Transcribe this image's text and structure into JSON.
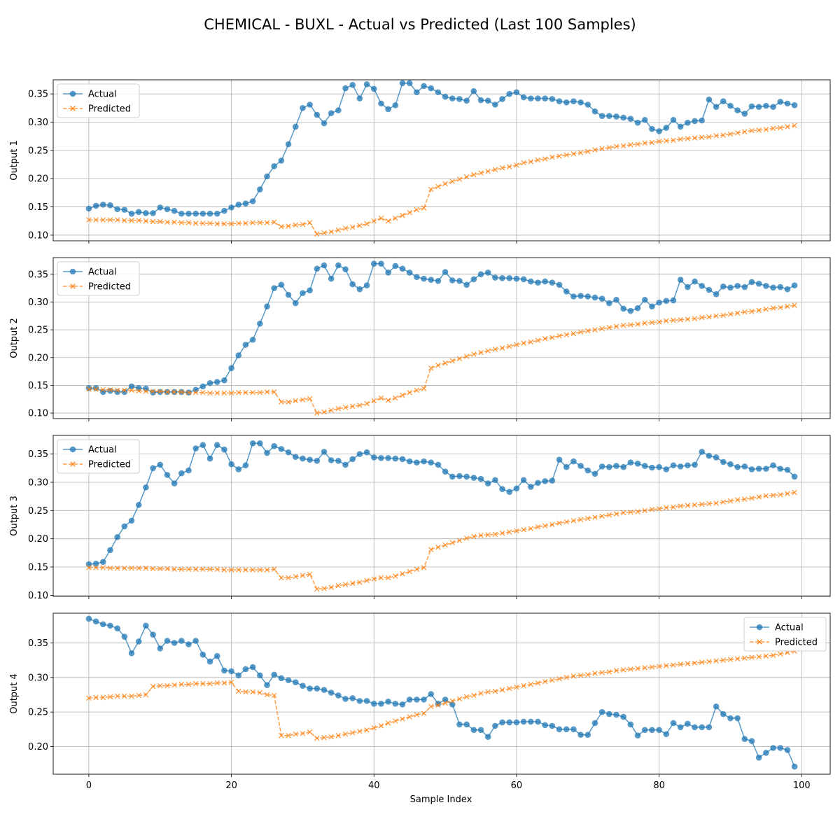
{
  "chart_data": {
    "type": "line",
    "title": "CHEMICAL - BUXL - Actual vs Predicted (Last 100 Samples)",
    "xlabel": "Sample Index",
    "xlim": [
      -5,
      104
    ],
    "xticks": [
      0,
      20,
      40,
      60,
      80,
      100
    ],
    "grid": true,
    "colors": {
      "actual": "#1f77b4",
      "predicted": "#ff7f0e"
    },
    "subplots": [
      {
        "ylabel": "Output 1",
        "ylim": [
          0.09,
          0.375
        ],
        "yticks": [
          0.1,
          0.15,
          0.2,
          0.25,
          0.3,
          0.35
        ],
        "ytick_labels": [
          "0.10",
          "0.15",
          "0.20",
          "0.25",
          "0.30",
          "0.35"
        ],
        "legend_position": "upper-left",
        "series": [
          {
            "name": "Actual",
            "values": [
              0.147,
              0.152,
              0.154,
              0.153,
              0.146,
              0.145,
              0.138,
              0.141,
              0.139,
              0.139,
              0.149,
              0.146,
              0.143,
              0.138,
              0.138,
              0.138,
              0.138,
              0.138,
              0.138,
              0.143,
              0.149,
              0.154,
              0.156,
              0.16,
              0.181,
              0.204,
              0.222,
              0.232,
              0.261,
              0.292,
              0.325,
              0.331,
              0.313,
              0.298,
              0.316,
              0.321,
              0.36,
              0.366,
              0.342,
              0.367,
              0.359,
              0.333,
              0.323,
              0.33,
              0.369,
              0.369,
              0.353,
              0.364,
              0.36,
              0.353,
              0.345,
              0.342,
              0.341,
              0.338,
              0.355,
              0.339,
              0.338,
              0.331,
              0.341,
              0.35,
              0.353,
              0.344,
              0.342,
              0.342,
              0.342,
              0.341,
              0.337,
              0.335,
              0.337,
              0.335,
              0.331,
              0.319,
              0.311,
              0.311,
              0.31,
              0.308,
              0.306,
              0.299,
              0.304,
              0.288,
              0.284,
              0.29,
              0.304,
              0.292,
              0.299,
              0.302,
              0.303,
              0.34,
              0.327,
              0.337,
              0.329,
              0.321,
              0.315,
              0.328,
              0.327,
              0.329,
              0.327,
              0.336,
              0.333,
              0.33
            ]
          },
          {
            "name": "Predicted",
            "values": [
              0.127,
              0.127,
              0.127,
              0.127,
              0.127,
              0.126,
              0.126,
              0.126,
              0.125,
              0.124,
              0.124,
              0.123,
              0.123,
              0.122,
              0.122,
              0.121,
              0.121,
              0.121,
              0.12,
              0.12,
              0.12,
              0.121,
              0.121,
              0.122,
              0.122,
              0.122,
              0.123,
              0.115,
              0.116,
              0.118,
              0.119,
              0.122,
              0.102,
              0.104,
              0.106,
              0.109,
              0.112,
              0.114,
              0.117,
              0.12,
              0.125,
              0.13,
              0.125,
              0.13,
              0.135,
              0.14,
              0.145,
              0.148,
              0.181,
              0.186,
              0.191,
              0.195,
              0.199,
              0.203,
              0.207,
              0.21,
              0.213,
              0.216,
              0.219,
              0.221,
              0.224,
              0.228,
              0.23,
              0.233,
              0.235,
              0.238,
              0.24,
              0.242,
              0.244,
              0.246,
              0.248,
              0.251,
              0.253,
              0.255,
              0.257,
              0.258,
              0.26,
              0.261,
              0.263,
              0.264,
              0.266,
              0.267,
              0.268,
              0.27,
              0.271,
              0.272,
              0.273,
              0.274,
              0.276,
              0.277,
              0.279,
              0.281,
              0.283,
              0.285,
              0.286,
              0.287,
              0.289,
              0.29,
              0.292,
              0.294
            ]
          }
        ]
      },
      {
        "ylabel": "Output 2",
        "ylim": [
          0.09,
          0.38
        ],
        "yticks": [
          0.1,
          0.15,
          0.2,
          0.25,
          0.3,
          0.35
        ],
        "ytick_labels": [
          "0.10",
          "0.15",
          "0.20",
          "0.25",
          "0.30",
          "0.35"
        ],
        "legend_position": "upper-left",
        "series": [
          {
            "name": "Actual",
            "values": [
              0.145,
              0.145,
              0.138,
              0.14,
              0.138,
              0.138,
              0.148,
              0.145,
              0.144,
              0.137,
              0.138,
              0.138,
              0.138,
              0.138,
              0.137,
              0.142,
              0.148,
              0.154,
              0.156,
              0.159,
              0.181,
              0.204,
              0.223,
              0.232,
              0.261,
              0.292,
              0.325,
              0.331,
              0.313,
              0.298,
              0.316,
              0.321,
              0.36,
              0.366,
              0.342,
              0.366,
              0.359,
              0.332,
              0.323,
              0.33,
              0.369,
              0.369,
              0.353,
              0.365,
              0.36,
              0.353,
              0.345,
              0.342,
              0.34,
              0.338,
              0.354,
              0.339,
              0.338,
              0.331,
              0.341,
              0.35,
              0.353,
              0.344,
              0.343,
              0.343,
              0.342,
              0.341,
              0.337,
              0.335,
              0.337,
              0.335,
              0.331,
              0.319,
              0.31,
              0.311,
              0.31,
              0.308,
              0.306,
              0.298,
              0.304,
              0.288,
              0.284,
              0.289,
              0.304,
              0.292,
              0.299,
              0.302,
              0.303,
              0.34,
              0.327,
              0.337,
              0.329,
              0.322,
              0.314,
              0.328,
              0.326,
              0.329,
              0.327,
              0.336,
              0.333,
              0.329,
              0.326,
              0.327,
              0.323,
              0.33
            ]
          },
          {
            "name": "Predicted",
            "values": [
              0.143,
              0.143,
              0.142,
              0.142,
              0.141,
              0.141,
              0.141,
              0.14,
              0.139,
              0.139,
              0.139,
              0.138,
              0.138,
              0.138,
              0.137,
              0.137,
              0.137,
              0.136,
              0.136,
              0.136,
              0.136,
              0.137,
              0.137,
              0.137,
              0.137,
              0.138,
              0.138,
              0.12,
              0.12,
              0.122,
              0.124,
              0.126,
              0.1,
              0.102,
              0.105,
              0.108,
              0.11,
              0.112,
              0.114,
              0.117,
              0.122,
              0.127,
              0.123,
              0.127,
              0.132,
              0.137,
              0.141,
              0.144,
              0.181,
              0.186,
              0.19,
              0.194,
              0.198,
              0.202,
              0.206,
              0.209,
              0.212,
              0.215,
              0.217,
              0.22,
              0.223,
              0.226,
              0.228,
              0.231,
              0.234,
              0.236,
              0.239,
              0.241,
              0.243,
              0.246,
              0.248,
              0.25,
              0.252,
              0.254,
              0.256,
              0.258,
              0.259,
              0.26,
              0.262,
              0.263,
              0.264,
              0.266,
              0.267,
              0.268,
              0.269,
              0.27,
              0.272,
              0.273,
              0.275,
              0.276,
              0.278,
              0.28,
              0.282,
              0.283,
              0.285,
              0.287,
              0.289,
              0.29,
              0.292,
              0.294
            ]
          }
        ]
      },
      {
        "ylabel": "Output 3",
        "ylim": [
          0.098,
          0.383
        ],
        "yticks": [
          0.1,
          0.15,
          0.2,
          0.25,
          0.3,
          0.35
        ],
        "ytick_labels": [
          "0.10",
          "0.15",
          "0.20",
          "0.25",
          "0.30",
          "0.35"
        ],
        "legend_position": "upper-left",
        "series": [
          {
            "name": "Actual",
            "values": [
              0.155,
              0.156,
              0.159,
              0.18,
              0.203,
              0.222,
              0.232,
              0.26,
              0.291,
              0.325,
              0.331,
              0.313,
              0.298,
              0.316,
              0.321,
              0.36,
              0.366,
              0.342,
              0.366,
              0.358,
              0.332,
              0.323,
              0.33,
              0.369,
              0.369,
              0.352,
              0.364,
              0.359,
              0.353,
              0.345,
              0.342,
              0.34,
              0.338,
              0.354,
              0.339,
              0.338,
              0.331,
              0.341,
              0.35,
              0.353,
              0.344,
              0.343,
              0.343,
              0.342,
              0.341,
              0.337,
              0.335,
              0.337,
              0.335,
              0.331,
              0.319,
              0.31,
              0.311,
              0.31,
              0.308,
              0.306,
              0.298,
              0.304,
              0.288,
              0.283,
              0.289,
              0.304,
              0.292,
              0.299,
              0.302,
              0.303,
              0.34,
              0.327,
              0.337,
              0.329,
              0.321,
              0.315,
              0.328,
              0.327,
              0.329,
              0.327,
              0.335,
              0.333,
              0.329,
              0.326,
              0.327,
              0.323,
              0.33,
              0.328,
              0.33,
              0.331,
              0.354,
              0.347,
              0.344,
              0.336,
              0.332,
              0.327,
              0.328,
              0.323,
              0.324,
              0.324,
              0.33,
              0.324,
              0.322,
              0.31
            ]
          },
          {
            "name": "Predicted",
            "values": [
              0.149,
              0.149,
              0.149,
              0.148,
              0.148,
              0.148,
              0.148,
              0.148,
              0.148,
              0.147,
              0.147,
              0.147,
              0.146,
              0.146,
              0.146,
              0.146,
              0.146,
              0.146,
              0.146,
              0.145,
              0.145,
              0.145,
              0.145,
              0.145,
              0.145,
              0.145,
              0.146,
              0.131,
              0.131,
              0.133,
              0.135,
              0.137,
              0.111,
              0.112,
              0.114,
              0.117,
              0.119,
              0.121,
              0.123,
              0.126,
              0.129,
              0.131,
              0.131,
              0.134,
              0.138,
              0.142,
              0.146,
              0.149,
              0.181,
              0.185,
              0.189,
              0.193,
              0.197,
              0.201,
              0.204,
              0.206,
              0.207,
              0.208,
              0.21,
              0.212,
              0.214,
              0.216,
              0.218,
              0.221,
              0.223,
              0.225,
              0.228,
              0.23,
              0.232,
              0.234,
              0.236,
              0.238,
              0.24,
              0.242,
              0.244,
              0.246,
              0.247,
              0.248,
              0.25,
              0.252,
              0.253,
              0.255,
              0.256,
              0.258,
              0.259,
              0.26,
              0.261,
              0.262,
              0.263,
              0.265,
              0.267,
              0.269,
              0.27,
              0.272,
              0.274,
              0.276,
              0.277,
              0.278,
              0.28,
              0.282
            ]
          }
        ]
      },
      {
        "ylabel": "Output 4",
        "ylim": [
          0.16,
          0.393
        ],
        "yticks": [
          0.2,
          0.25,
          0.3,
          0.35
        ],
        "ytick_labels": [
          "0.20",
          "0.25",
          "0.30",
          "0.35"
        ],
        "legend_position": "upper-right",
        "series": [
          {
            "name": "Actual",
            "values": [
              0.385,
              0.381,
              0.377,
              0.375,
              0.371,
              0.359,
              0.335,
              0.352,
              0.375,
              0.362,
              0.342,
              0.353,
              0.35,
              0.353,
              0.348,
              0.353,
              0.333,
              0.323,
              0.331,
              0.31,
              0.309,
              0.303,
              0.312,
              0.315,
              0.303,
              0.289,
              0.304,
              0.299,
              0.296,
              0.293,
              0.288,
              0.284,
              0.284,
              0.282,
              0.278,
              0.274,
              0.269,
              0.27,
              0.266,
              0.266,
              0.262,
              0.262,
              0.265,
              0.262,
              0.261,
              0.268,
              0.268,
              0.268,
              0.276,
              0.262,
              0.268,
              0.261,
              0.232,
              0.232,
              0.224,
              0.224,
              0.214,
              0.23,
              0.235,
              0.235,
              0.235,
              0.236,
              0.236,
              0.236,
              0.231,
              0.23,
              0.225,
              0.225,
              0.225,
              0.217,
              0.217,
              0.234,
              0.25,
              0.247,
              0.246,
              0.243,
              0.232,
              0.216,
              0.224,
              0.224,
              0.224,
              0.218,
              0.234,
              0.228,
              0.233,
              0.228,
              0.228,
              0.228,
              0.258,
              0.247,
              0.241,
              0.241,
              0.211,
              0.208,
              0.184,
              0.191,
              0.198,
              0.198,
              0.195,
              0.171
            ]
          },
          {
            "name": "Predicted",
            "values": [
              0.27,
              0.271,
              0.271,
              0.272,
              0.273,
              0.273,
              0.273,
              0.274,
              0.275,
              0.287,
              0.288,
              0.288,
              0.289,
              0.29,
              0.29,
              0.291,
              0.291,
              0.291,
              0.292,
              0.292,
              0.293,
              0.28,
              0.279,
              0.279,
              0.278,
              0.275,
              0.274,
              0.216,
              0.216,
              0.218,
              0.219,
              0.221,
              0.212,
              0.213,
              0.214,
              0.216,
              0.218,
              0.22,
              0.222,
              0.224,
              0.227,
              0.23,
              0.234,
              0.237,
              0.24,
              0.243,
              0.246,
              0.248,
              0.258,
              0.26,
              0.263,
              0.266,
              0.269,
              0.272,
              0.274,
              0.277,
              0.279,
              0.28,
              0.282,
              0.284,
              0.286,
              0.288,
              0.29,
              0.292,
              0.294,
              0.296,
              0.298,
              0.3,
              0.302,
              0.303,
              0.304,
              0.306,
              0.307,
              0.308,
              0.31,
              0.311,
              0.312,
              0.313,
              0.314,
              0.315,
              0.316,
              0.317,
              0.318,
              0.319,
              0.32,
              0.321,
              0.322,
              0.323,
              0.324,
              0.325,
              0.326,
              0.327,
              0.328,
              0.329,
              0.33,
              0.331,
              0.332,
              0.334,
              0.336,
              0.338
            ]
          }
        ]
      }
    ]
  }
}
